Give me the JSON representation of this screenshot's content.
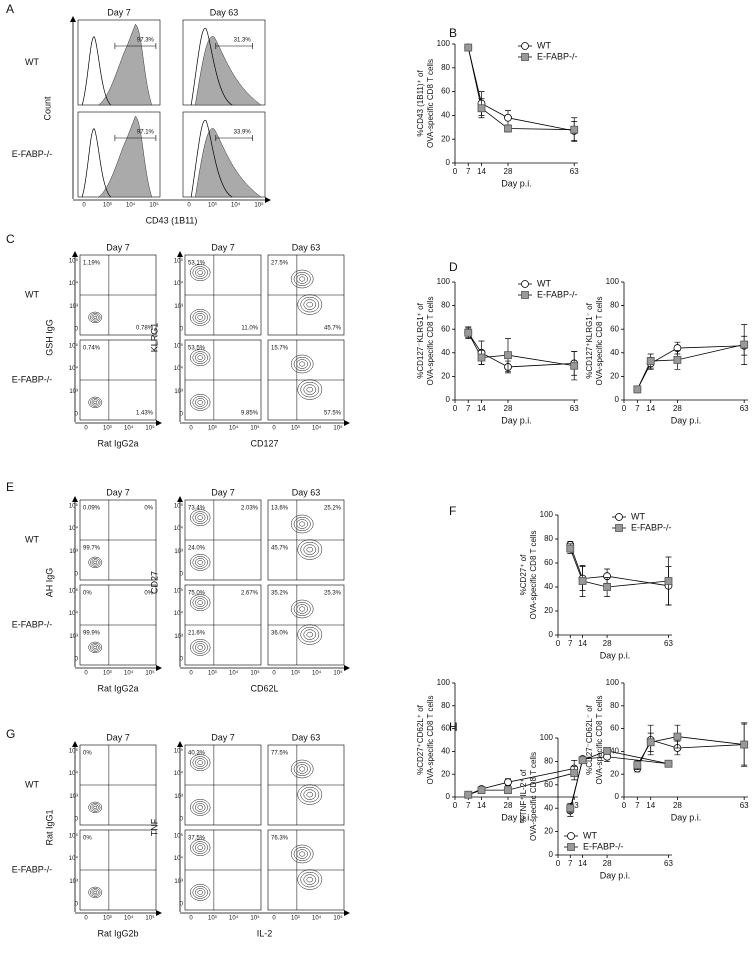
{
  "flow_ticks": [
    "0",
    "10³",
    "10⁴",
    "10⁵"
  ],
  "flow_panels": [
    {
      "letter": "A",
      "rows": [
        "WT",
        "E-FABP-/-"
      ],
      "blocks": [
        {
          "kind": "histogram",
          "columns": [
            "Day 7",
            "Day 63"
          ],
          "xlabel": "CD43 (1B11)",
          "ylabel": "Count",
          "plots": [
            [
              {
                "gate": "97.3%"
              },
              {
                "gate": "31.3%"
              }
            ],
            [
              {
                "gate": "97.1%"
              },
              {
                "gate": "33.9%"
              }
            ]
          ]
        }
      ]
    },
    {
      "letter": "C",
      "rows": [
        "WT",
        "E-FABP-/-"
      ],
      "blocks": [
        {
          "kind": "contour",
          "columns": [
            "Day 7"
          ],
          "xlabel": "Rat IgG2a",
          "ylabel": "GSH IgG",
          "plots": [
            [
              {
                "tl": "1.19%",
                "br": "0.78%"
              }
            ],
            [
              {
                "tl": "0.74%",
                "br": "1.43%"
              }
            ]
          ]
        },
        {
          "kind": "contour",
          "columns": [
            "Day 7",
            "Day 63"
          ],
          "xlabel": "CD127",
          "ylabel": "KLRG1",
          "plots": [
            [
              {
                "tl": "53.1%",
                "br": "11.0%"
              },
              {
                "tl": "27.5%",
                "br": "45.7%"
              }
            ],
            [
              {
                "tl": "53.5%",
                "br": "9.85%"
              },
              {
                "tl": "15.7%",
                "br": "57.5%"
              }
            ]
          ]
        }
      ]
    },
    {
      "letter": "E",
      "rows": [
        "WT",
        "E-FABP-/-"
      ],
      "blocks": [
        {
          "kind": "contour",
          "columns": [
            "Day 7"
          ],
          "xlabel": "Rat IgG2a",
          "ylabel": "AH IgG",
          "plots": [
            [
              {
                "tl": "0.09%",
                "tr": "0%",
                "bl": "99.7%"
              }
            ],
            [
              {
                "tl": "0%",
                "tr": "0%",
                "bl": "99.9%"
              }
            ]
          ]
        },
        {
          "kind": "contour",
          "columns": [
            "Day 7",
            "Day 63"
          ],
          "xlabel": "CD62L",
          "ylabel": "CD27",
          "plots": [
            [
              {
                "tl": "73.4%",
                "tr": "2.03%",
                "bl": "24.0%"
              },
              {
                "tl": "13.6%",
                "tr": "25.2%",
                "bl": "45.7%"
              }
            ],
            [
              {
                "tl": "75.0%",
                "tr": "2.67%",
                "bl": "21.6%"
              },
              {
                "tl": "35.2%",
                "tr": "25.3%",
                "bl": "36.0%"
              }
            ]
          ]
        }
      ]
    },
    {
      "letter": "G",
      "rows": [
        "WT",
        "E-FABP-/-"
      ],
      "blocks": [
        {
          "kind": "contour",
          "columns": [
            "Day 7"
          ],
          "xlabel": "Rat IgG2b",
          "ylabel": "Rat IgG1",
          "plots": [
            [
              {
                "tl": "0%"
              }
            ],
            [
              {
                "tl": "0%"
              }
            ]
          ]
        },
        {
          "kind": "contour",
          "columns": [
            "Day 7",
            "Day 63"
          ],
          "xlabel": "IL-2",
          "ylabel": "TNF",
          "plots": [
            [
              {
                "tl": "40.3%"
              },
              {
                "tl": "77.5%"
              }
            ],
            [
              {
                "tl": "37.5%"
              },
              {
                "tl": "76.3%"
              }
            ]
          ]
        }
      ]
    }
  ],
  "chart_data": [
    {
      "type": "line",
      "panel": "B",
      "ylabel": [
        "%CD43 (1B11)⁺ of",
        "OVA-specific CD8 T cells"
      ],
      "xlabel": "Day p.i.",
      "xlim": [
        0,
        65
      ],
      "xticks": [
        0,
        7,
        14,
        28,
        63
      ],
      "ylim": [
        0,
        100
      ],
      "yticks": [
        0,
        20,
        40,
        60,
        80,
        100
      ],
      "x": [
        7,
        14,
        28,
        63
      ],
      "legend": "upper right",
      "series": [
        {
          "name": "WT",
          "color": "#ffffff",
          "marker": "circle",
          "values": [
            97,
            50,
            38,
            27
          ],
          "errors": [
            2,
            10,
            6,
            8
          ]
        },
        {
          "name": "E-FABP-/-",
          "color": "#999999",
          "marker": "square",
          "values": [
            97,
            46,
            29,
            28
          ],
          "errors": [
            2,
            8,
            3,
            10
          ]
        }
      ]
    },
    {
      "type": "line",
      "panel": "D",
      "ylabel": [
        "%CD127⁻KLRG1⁺ of",
        "OVA-specific CD8 T cells"
      ],
      "xlabel": "Day p.i.",
      "xlim": [
        0,
        65
      ],
      "xticks": [
        0,
        7,
        14,
        28,
        63
      ],
      "ylim": [
        0,
        100
      ],
      "yticks": [
        0,
        20,
        40,
        60,
        80,
        100
      ],
      "x": [
        7,
        14,
        28,
        63
      ],
      "legend": "upper right",
      "series": [
        {
          "name": "WT",
          "color": "#ffffff",
          "marker": "circle",
          "values": [
            57,
            40,
            28,
            31
          ],
          "errors": [
            4,
            10,
            5,
            10
          ]
        },
        {
          "name": "E-FABP-/-",
          "color": "#999999",
          "marker": "square",
          "values": [
            57,
            36,
            38,
            29
          ],
          "errors": [
            5,
            6,
            14,
            12
          ]
        }
      ]
    },
    {
      "type": "line",
      "ylabel": [
        "%CD127⁺KLRG1⁻ of",
        "OVA-specific CD8 T cells"
      ],
      "xlabel": "Day p.i.",
      "xlim": [
        0,
        65
      ],
      "xticks": [
        0,
        7,
        14,
        28,
        63
      ],
      "ylim": [
        0,
        100
      ],
      "yticks": [
        0,
        20,
        40,
        60,
        80,
        100
      ],
      "x": [
        7,
        14,
        28,
        63
      ],
      "series": [
        {
          "color": "#ffffff",
          "marker": "circle",
          "values": [
            9,
            31,
            44,
            46
          ],
          "errors": [
            2,
            5,
            5,
            8
          ]
        },
        {
          "color": "#999999",
          "marker": "square",
          "values": [
            9,
            33,
            34,
            47
          ],
          "errors": [
            2,
            6,
            8,
            17
          ]
        }
      ]
    },
    {
      "type": "line",
      "panel": "F",
      "ylabel": [
        "%CD27⁺ of",
        "OVA-specific CD8 T cells"
      ],
      "xlabel": "Day p.i.",
      "xlim": [
        0,
        65
      ],
      "xticks": [
        0,
        7,
        14,
        28,
        63
      ],
      "ylim": [
        0,
        100
      ],
      "yticks": [
        0,
        20,
        40,
        60,
        80,
        100
      ],
      "x": [
        7,
        14,
        28,
        63
      ],
      "legend": "upper right",
      "series": [
        {
          "name": "WT",
          "color": "#ffffff",
          "marker": "circle",
          "values": [
            75,
            47,
            49,
            41
          ],
          "errors": [
            3,
            10,
            6,
            16
          ]
        },
        {
          "name": "E-FABP-/-",
          "color": "#999999",
          "marker": "square",
          "values": [
            72,
            45,
            40,
            45
          ],
          "errors": [
            4,
            13,
            8,
            20
          ]
        }
      ]
    },
    {
      "type": "line",
      "ylabel": [
        "%CD27⁺CD62L⁺ of",
        "OVA-specific CD8 T cells"
      ],
      "xlabel": "Day p.i.",
      "xlim": [
        0,
        65
      ],
      "xticks": [
        0,
        7,
        14,
        28,
        63
      ],
      "ylim": [
        0,
        100
      ],
      "yticks": [
        0,
        20,
        40,
        60,
        80,
        100
      ],
      "x": [
        7,
        14,
        28,
        63
      ],
      "series": [
        {
          "color": "#ffffff",
          "marker": "circle",
          "values": [
            2,
            7,
            13,
            25
          ],
          "errors": [
            1,
            1,
            3,
            7
          ]
        },
        {
          "color": "#999999",
          "marker": "square",
          "values": [
            2,
            6,
            6,
            21
          ],
          "errors": [
            1,
            1,
            2,
            6
          ]
        }
      ]
    },
    {
      "type": "line",
      "ylabel": [
        "%CD27⁻CD62L⁻ of",
        "OVA-specific CD8 T cells"
      ],
      "xlabel": "Day p.i.",
      "xlim": [
        0,
        65
      ],
      "xticks": [
        0,
        7,
        14,
        28,
        63
      ],
      "ylim": [
        0,
        100
      ],
      "yticks": [
        0,
        20,
        40,
        60,
        80,
        100
      ],
      "x": [
        7,
        14,
        28,
        63
      ],
      "series": [
        {
          "color": "#ffffff",
          "marker": "circle",
          "values": [
            25,
            50,
            43,
            46
          ],
          "errors": [
            3,
            13,
            6,
            19
          ]
        },
        {
          "color": "#999999",
          "marker": "square",
          "values": [
            28,
            48,
            53,
            46
          ],
          "errors": [
            4,
            8,
            10,
            18
          ]
        }
      ]
    },
    {
      "type": "line",
      "panel": "H",
      "ylabel": [
        "%TNF⁺IL-2⁺ of",
        "OVA-specific CD8 T cells"
      ],
      "xlabel": "Day p.i.",
      "xlim": [
        0,
        65
      ],
      "xticks": [
        0,
        7,
        14,
        28,
        63
      ],
      "ylim": [
        0,
        100
      ],
      "yticks": [
        0,
        20,
        40,
        60,
        80,
        100
      ],
      "x": [
        7,
        14,
        28,
        63
      ],
      "legend": "lower left",
      "series": [
        {
          "name": "WT",
          "color": "#ffffff",
          "marker": "circle",
          "values": [
            38,
            82,
            84,
            78
          ],
          "errors": [
            5,
            2,
            4,
            2
          ]
        },
        {
          "name": "E-FABP-/-",
          "color": "#999999",
          "marker": "square",
          "values": [
            40,
            81,
            89,
            78
          ],
          "errors": [
            4,
            2,
            3,
            2
          ]
        }
      ]
    }
  ]
}
